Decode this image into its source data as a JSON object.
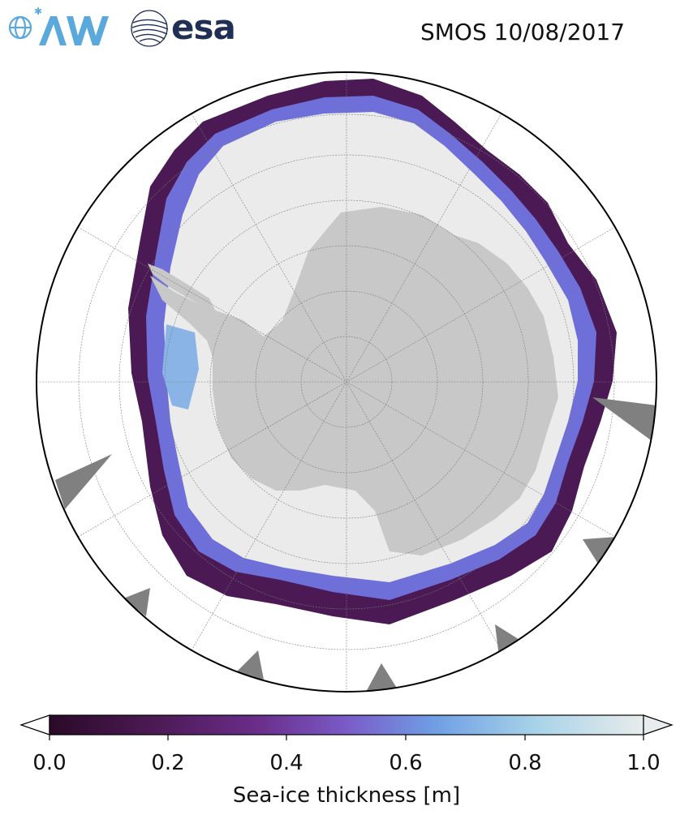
{
  "header": {
    "title": "SMOS 10/08/2017",
    "logos": {
      "awi": "AWI",
      "esa": "esa"
    }
  },
  "map": {
    "projection": "south-polar-stereographic",
    "region": "Antarctica",
    "land_color": "#c8c8c8",
    "ocean_color": "#ffffff",
    "thick_ice_color": "#ebebeb",
    "missing_data_color": "#808080",
    "gridlines": true
  },
  "colorbar": {
    "label": "Sea-ice thickness [m]",
    "ticks": [
      "0.0",
      "0.2",
      "0.4",
      "0.6",
      "0.8",
      "1.0"
    ],
    "range": [
      0.0,
      1.0
    ],
    "extend": "both",
    "colors": [
      "#2a0a28",
      "#4d1a55",
      "#6a2d8a",
      "#7a5bc8",
      "#6f9fe4",
      "#a8d3e8",
      "#e8ecec"
    ]
  }
}
